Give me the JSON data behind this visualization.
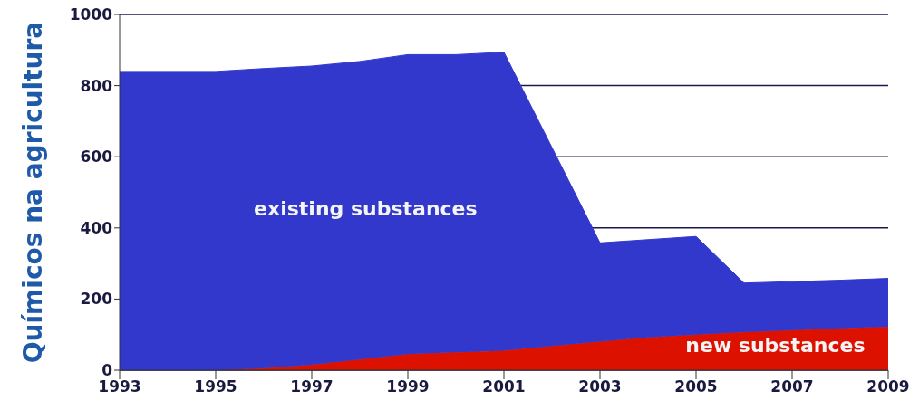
{
  "chart_data": {
    "type": "area",
    "stacked": true,
    "ylabel": "Químicos na agricultura",
    "x": [
      1993,
      1994,
      1995,
      1996,
      1997,
      1998,
      1999,
      2000,
      2001,
      2002,
      2003,
      2004,
      2005,
      2006,
      2007,
      2008,
      2009
    ],
    "series": [
      {
        "name": "new substances",
        "color": "#dd1100",
        "values": [
          0,
          0,
          0,
          5,
          15,
          30,
          45,
          50,
          55,
          68,
          80,
          92,
          100,
          107,
          112,
          118,
          122
        ]
      },
      {
        "name": "existing substances",
        "color": "#3238cc",
        "values": [
          840,
          840,
          840,
          843,
          840,
          838,
          842,
          837,
          839,
          558,
          278,
          275,
          276,
          138,
          137,
          135,
          136
        ]
      }
    ],
    "xlim": [
      1993,
      2009
    ],
    "xticks": [
      1993,
      1995,
      1997,
      1999,
      2001,
      2003,
      2005,
      2007,
      2009
    ],
    "ylim": [
      0,
      1000
    ],
    "yticks": [
      0,
      200,
      400,
      600,
      800,
      1000
    ],
    "grid": "y"
  }
}
